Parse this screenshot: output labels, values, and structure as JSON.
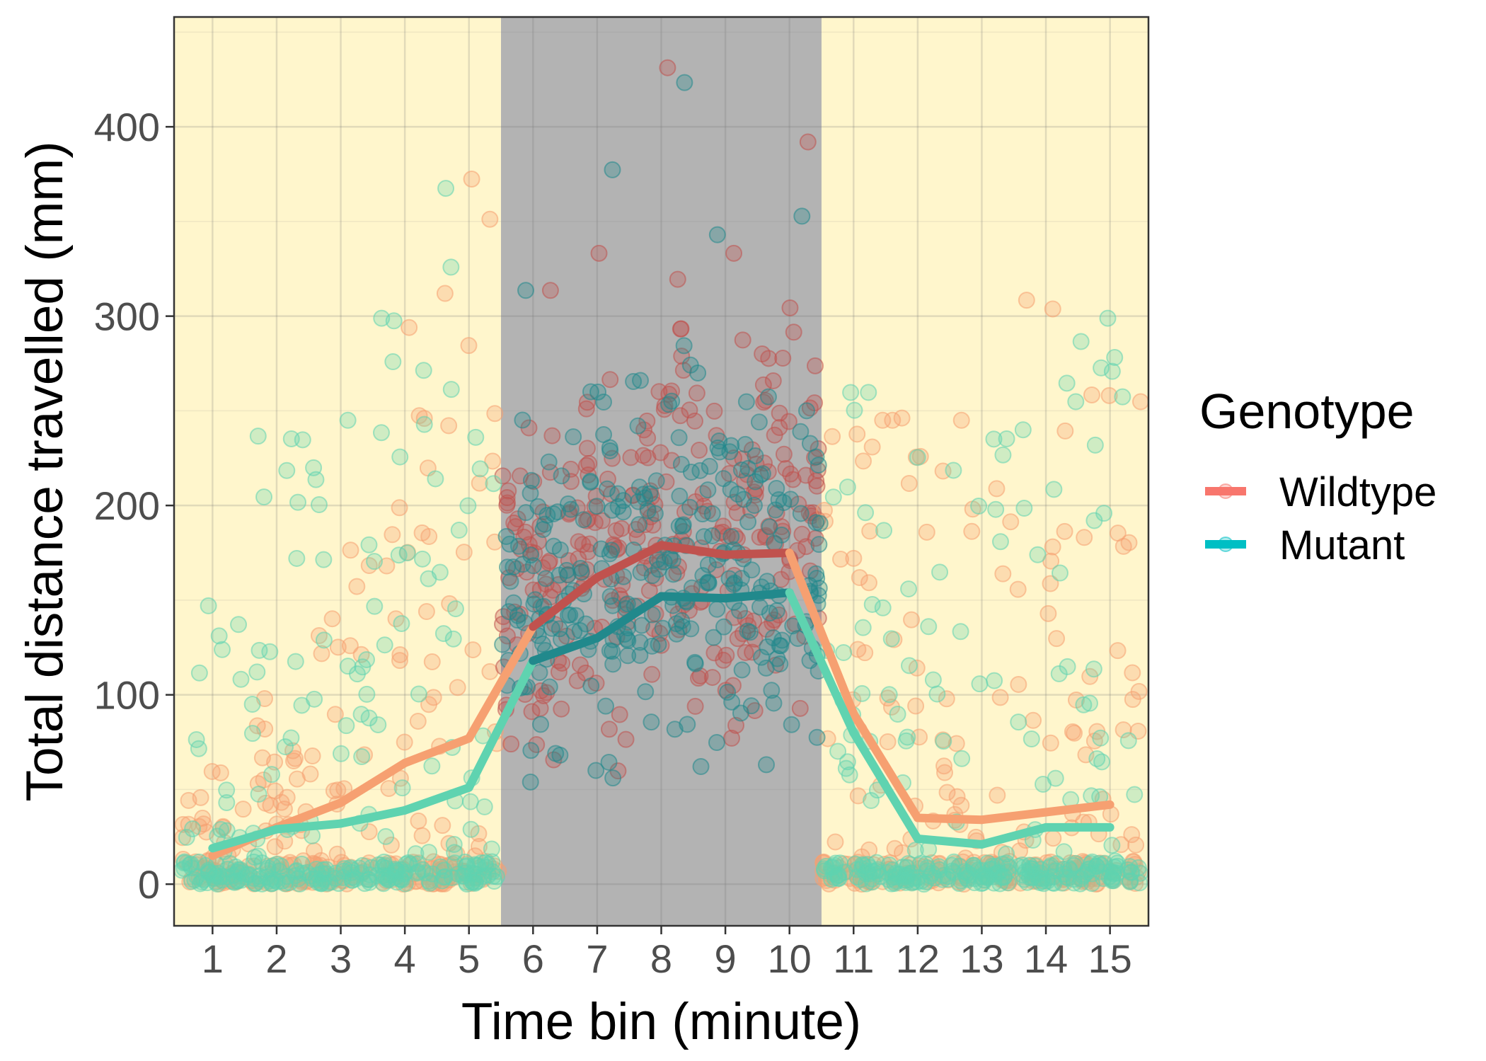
{
  "chart_data": {
    "type": "scatter",
    "xlabel": "Time bin (minute)",
    "ylabel": "Total distance travelled (mm)",
    "x_ticks": [
      "1",
      "2",
      "3",
      "4",
      "5",
      "6",
      "7",
      "8",
      "9",
      "10",
      "11",
      "12",
      "13",
      "14",
      "15"
    ],
    "y_ticks": [
      "0",
      "100",
      "200",
      "300",
      "400"
    ],
    "xlim": [
      0.4,
      15.6
    ],
    "ylim": [
      -22,
      458
    ],
    "grid": true,
    "shaded_regions": [
      {
        "x_from": 0.4,
        "x_to": 5.5,
        "color": "#fff6cc",
        "label": "light"
      },
      {
        "x_from": 5.5,
        "x_to": 10.5,
        "color": "#b3b3b3",
        "label": "dark"
      },
      {
        "x_from": 10.5,
        "x_to": 15.6,
        "color": "#fff6cc",
        "label": "light"
      }
    ],
    "legend": {
      "title": "Genotype",
      "position": "right",
      "entries": [
        {
          "label": "Wildtype",
          "color": "#f8766d"
        },
        {
          "label": "Mutant",
          "color": "#00bfc4"
        }
      ]
    },
    "series": [
      {
        "name": "Wildtype",
        "color": "#f8766d",
        "light_color": "#f6a071",
        "dark_color": "#c0524e",
        "mean_x": [
          1,
          2,
          3,
          4,
          5,
          6,
          7,
          8,
          9,
          10,
          11,
          12,
          13,
          14,
          15
        ],
        "mean_y": [
          15,
          30,
          43,
          64,
          77,
          136,
          162,
          179,
          174,
          175,
          90,
          35,
          34,
          38,
          42
        ],
        "points_per_bin": 60,
        "spread": [
          [
            0,
            60
          ],
          [
            0,
            100
          ],
          [
            0,
            180
          ],
          [
            0,
            300
          ],
          [
            0,
            380
          ],
          [
            20,
            320
          ],
          [
            10,
            340
          ],
          [
            0,
            440
          ],
          [
            5,
            340
          ],
          [
            10,
            400
          ],
          [
            0,
            250
          ],
          [
            0,
            250
          ],
          [
            0,
            250
          ],
          [
            0,
            310
          ],
          [
            0,
            260
          ]
        ]
      },
      {
        "name": "Mutant",
        "color": "#00bfc4",
        "light_color": "#5fd3b0",
        "dark_color": "#21898c",
        "mean_x": [
          1,
          2,
          3,
          4,
          5,
          6,
          7,
          8,
          9,
          10,
          11,
          12,
          13,
          14,
          15
        ],
        "mean_y": [
          19,
          29,
          32,
          39,
          51,
          118,
          130,
          152,
          151,
          154,
          80,
          24,
          21,
          30,
          30
        ],
        "points_per_bin": 60,
        "spread": [
          [
            0,
            150
          ],
          [
            0,
            240
          ],
          [
            0,
            250
          ],
          [
            0,
            305
          ],
          [
            0,
            375
          ],
          [
            25,
            320
          ],
          [
            10,
            385
          ],
          [
            0,
            432
          ],
          [
            10,
            350
          ],
          [
            0,
            360
          ],
          [
            0,
            265
          ],
          [
            0,
            230
          ],
          [
            0,
            240
          ],
          [
            0,
            270
          ],
          [
            0,
            305
          ]
        ]
      }
    ]
  }
}
